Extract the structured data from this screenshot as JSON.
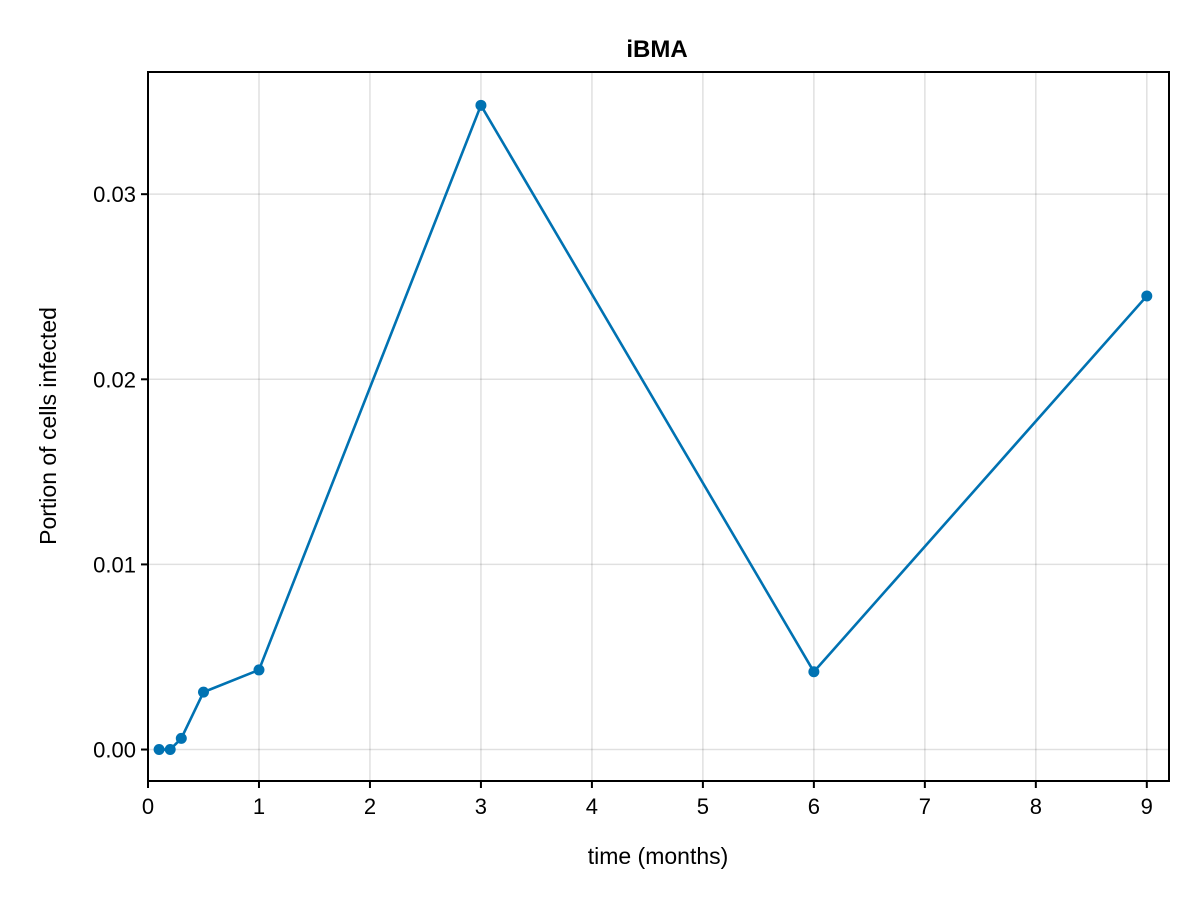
{
  "chart_data": {
    "type": "line",
    "title": "iBMA",
    "xlabel": "time (months)",
    "ylabel": "Portion of cells infected",
    "xlim": [
      0,
      9.2
    ],
    "ylim": [
      -0.0017,
      0.0366
    ],
    "xticks": [
      0,
      1,
      2,
      3,
      4,
      5,
      6,
      7,
      8,
      9
    ],
    "xtick_labels": [
      "0",
      "1",
      "2",
      "3",
      "4",
      "5",
      "6",
      "7",
      "8",
      "9"
    ],
    "yticks": [
      0.0,
      0.01,
      0.02,
      0.03
    ],
    "ytick_labels": [
      "0.00",
      "0.01",
      "0.02",
      "0.03"
    ],
    "grid": true,
    "series": [
      {
        "x": [
          0.1,
          0.2,
          0.3,
          0.5,
          1,
          3,
          6,
          9
        ],
        "y": [
          0.0,
          0.0,
          0.0006,
          0.0031,
          0.0043,
          0.0348,
          0.0042,
          0.0245
        ],
        "color": "#0072b2",
        "markers": true
      }
    ]
  }
}
